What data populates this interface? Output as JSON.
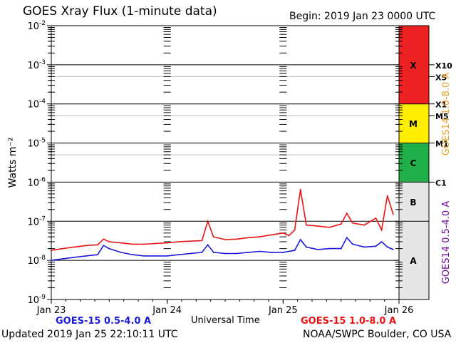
{
  "header": {
    "title": "GOES Xray Flux (1-minute data)",
    "begin": "Begin:  2019 Jan 23 0000 UTC"
  },
  "footer": {
    "updated": "Updated 2019 Jan 25 22:10:11 UTC",
    "credit": "NOAA/SWPC Boulder, CO USA"
  },
  "colors": {
    "short_series": "#1a1adc",
    "long_series": "#e81414",
    "goes14_short": "#6a0a9a",
    "goes14_long": "#e8a020",
    "class_x": "#ee2222",
    "class_m": "#ffee00",
    "class_c": "#22b04a",
    "class_ab": "#e6e6e6"
  },
  "chart_data": {
    "type": "line",
    "title": "GOES Xray Flux (1-minute data)",
    "xlabel": "Universal Time",
    "ylabel": "Watts m⁻²",
    "right_label_top": "GOES14 1.0-8.0 A",
    "right_label_bottom": "GOES14 0.5-4.0 A",
    "y_scale": "log",
    "ylim": [
      1e-09,
      0.01
    ],
    "y_ticks": [
      {
        "exp": "-2"
      },
      {
        "exp": "-3"
      },
      {
        "exp": "-4"
      },
      {
        "exp": "-5"
      },
      {
        "exp": "-6"
      },
      {
        "exp": "-7"
      },
      {
        "exp": "-8"
      },
      {
        "exp": "-9"
      }
    ],
    "x_ticks": [
      "Jan 23",
      "Jan 24",
      "Jan 25",
      "Jan 26"
    ],
    "x_range_days": [
      0,
      3
    ],
    "flare_classes": [
      {
        "label": "X",
        "from": 0.0001,
        "to": 0.01
      },
      {
        "label": "M",
        "from": 1e-05,
        "to": 0.0001
      },
      {
        "label": "C",
        "from": 1e-06,
        "to": 1e-05
      },
      {
        "label": "B",
        "from": 1e-07,
        "to": 1e-06
      },
      {
        "label": "A",
        "from": 1e-09,
        "to": 1e-07
      }
    ],
    "class_thresholds": [
      {
        "label": "X10",
        "value": 0.001
      },
      {
        "label": "X5",
        "value": 0.0005
      },
      {
        "label": "X1",
        "value": 0.0001
      },
      {
        "label": "M5",
        "value": 5e-05
      },
      {
        "label": "M1",
        "value": 1e-05
      },
      {
        "label": "C1",
        "value": 1e-06
      }
    ],
    "legend": {
      "short": "GOES-15 0.5-4.0 A",
      "long": "GOES-15 1.0-8.0 A"
    },
    "series": [
      {
        "name": "GOES-15 0.5-4.0 A",
        "x": [
          0.0,
          0.1,
          0.2,
          0.3,
          0.4,
          0.45,
          0.5,
          0.6,
          0.7,
          0.8,
          0.9,
          1.0,
          1.1,
          1.2,
          1.3,
          1.35,
          1.4,
          1.5,
          1.6,
          1.7,
          1.8,
          1.9,
          2.0,
          2.1,
          2.15,
          2.2,
          2.3,
          2.4,
          2.5,
          2.55,
          2.6,
          2.7,
          2.8,
          2.85,
          2.9,
          2.95
        ],
        "y": [
          1e-08,
          1.1e-08,
          1.2e-08,
          1.3e-08,
          1.4e-08,
          2.4e-08,
          2e-08,
          1.6e-08,
          1.4e-08,
          1.3e-08,
          1.3e-08,
          1.3e-08,
          1.4e-08,
          1.5e-08,
          1.6e-08,
          2.5e-08,
          1.6e-08,
          1.5e-08,
          1.5e-08,
          1.6e-08,
          1.7e-08,
          1.6e-08,
          1.6e-08,
          1.8e-08,
          3.4e-08,
          2.2e-08,
          1.9e-08,
          2e-08,
          2e-08,
          3.8e-08,
          2.6e-08,
          2.2e-08,
          2.3e-08,
          3e-08,
          2.2e-08,
          1.9e-08
        ]
      },
      {
        "name": "GOES-15 1.0-8.0 A",
        "x": [
          0.0,
          0.1,
          0.2,
          0.3,
          0.4,
          0.45,
          0.5,
          0.6,
          0.7,
          0.8,
          0.9,
          1.0,
          1.1,
          1.2,
          1.3,
          1.35,
          1.4,
          1.5,
          1.6,
          1.7,
          1.8,
          1.9,
          2.0,
          2.05,
          2.1,
          2.15,
          2.2,
          2.3,
          2.4,
          2.5,
          2.55,
          2.6,
          2.7,
          2.8,
          2.85,
          2.9,
          2.95
        ],
        "y": [
          1.8e-08,
          2e-08,
          2.2e-08,
          2.4e-08,
          2.5e-08,
          3.5e-08,
          3e-08,
          2.8e-08,
          2.6e-08,
          2.6e-08,
          2.7e-08,
          2.8e-08,
          3e-08,
          3.1e-08,
          3.2e-08,
          1e-07,
          4e-08,
          3.4e-08,
          3.5e-08,
          3.8e-08,
          4e-08,
          4.5e-08,
          5e-08,
          4.3e-08,
          6e-08,
          6.5e-07,
          8e-08,
          7.5e-08,
          7e-08,
          8.5e-08,
          1.6e-07,
          9e-08,
          8e-08,
          1.2e-07,
          6e-08,
          4.5e-07,
          1.5e-07
        ]
      }
    ]
  }
}
